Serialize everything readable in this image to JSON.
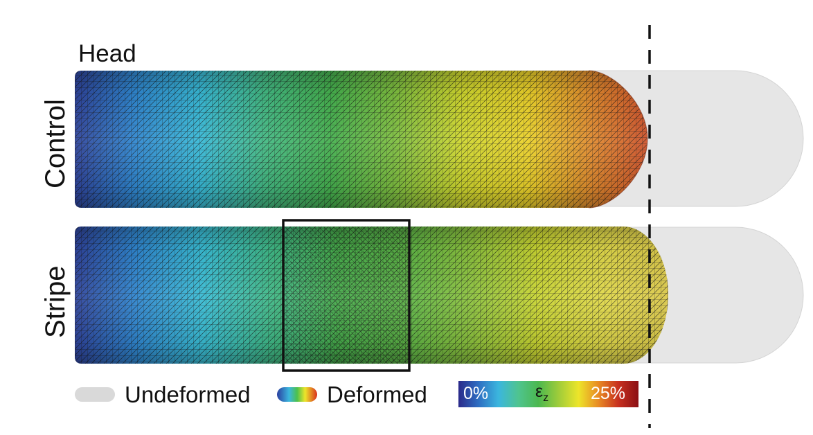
{
  "labels": {
    "head": "Head",
    "control": "Control",
    "stripe": "Stripe"
  },
  "legend": {
    "undeformed": "Undeformed",
    "deformed": "Deformed"
  },
  "colorbar": {
    "min_label": "0%",
    "symbol": "ε",
    "subscript": "z",
    "max_label": "25%",
    "colors": [
      "#2b2a8a",
      "#2e6ec2",
      "#3bb6de",
      "#4fc48f",
      "#4bb84f",
      "#9fcc3a",
      "#ede52a",
      "#e88a24",
      "#c7301f",
      "#8a0f14"
    ]
  },
  "colors": {
    "undeformed_fill": "#e6e6e6",
    "mesh_line": "#1a1a1a",
    "control_gradient": [
      "#2e3d96",
      "#2f86cf",
      "#38b9d6",
      "#43b982",
      "#45b04e",
      "#7fbf3f",
      "#cfd72e",
      "#ebd22a",
      "#e0892e",
      "#c9482a"
    ],
    "stripe_gradient": [
      "#2e3d96",
      "#2f86cf",
      "#39bcd3",
      "#3fb887",
      "#47ae4c",
      "#5cb446",
      "#8cc23d",
      "#c9d532",
      "#e0d84a",
      "#d9c64a"
    ]
  }
}
